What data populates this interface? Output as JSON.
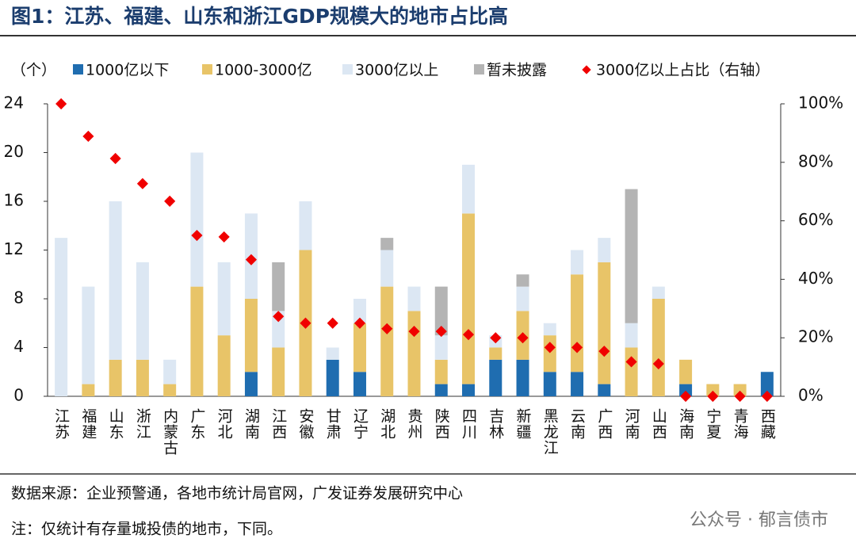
{
  "title": "图1：江苏、福建、山东和浙江GDP规模大的地市占比高",
  "source": "数据来源：企业预警通，各地市统计局官网，广发证券发展研究中心",
  "note": "注：仅统计有存量城投债的地市，下同。",
  "watermark": "公众号 · 郁言债市",
  "chart_data": {
    "type": "bar",
    "y_label": "（个）",
    "categories": [
      "江苏",
      "福建",
      "山东",
      "浙江",
      "内蒙古",
      "广东",
      "河北",
      "湖南",
      "江西",
      "安徽",
      "甘肃",
      "辽宁",
      "湖北",
      "贵州",
      "陕西",
      "四川",
      "吉林",
      "新疆",
      "黑龙江",
      "云南",
      "广西",
      "河南",
      "山西",
      "海南",
      "宁夏",
      "青海",
      "西藏"
    ],
    "series": [
      {
        "name": "1000亿以下",
        "color": "#1f6db0",
        "values": [
          0,
          0,
          0,
          0,
          0,
          0,
          0,
          2,
          0,
          0,
          3,
          2,
          0,
          0,
          1,
          1,
          3,
          3,
          2,
          2,
          1,
          0,
          0,
          1,
          0,
          0,
          2
        ]
      },
      {
        "name": "1000-3000亿",
        "color": "#e8c468",
        "values": [
          0,
          1,
          3,
          3,
          1,
          9,
          5,
          6,
          4,
          12,
          0,
          4,
          9,
          7,
          2,
          14,
          1,
          4,
          3,
          8,
          10,
          4,
          8,
          2,
          1,
          1,
          0
        ]
      },
      {
        "name": "3000亿以上",
        "color": "#dce7f3",
        "values": [
          13,
          8,
          13,
          8,
          2,
          11,
          6,
          7,
          3,
          4,
          1,
          2,
          3,
          2,
          2,
          4,
          1,
          2,
          1,
          2,
          2,
          2,
          1,
          0,
          0,
          0,
          0
        ]
      },
      {
        "name": "暂未披露",
        "color": "#b4b4b4",
        "values": [
          0,
          0,
          0,
          0,
          0,
          0,
          0,
          0,
          4,
          0,
          0,
          0,
          1,
          0,
          4,
          0,
          0,
          1,
          0,
          0,
          0,
          11,
          0,
          0,
          0,
          0,
          0
        ]
      },
      {
        "name": "3000亿以上占比（右轴）",
        "type": "scatter",
        "axis": "y2",
        "color": "#f00000",
        "values": [
          100,
          88.9,
          81.3,
          72.7,
          66.7,
          55,
          54.5,
          46.7,
          27.3,
          25,
          25,
          25,
          23.1,
          22.2,
          22.2,
          21.1,
          20,
          20,
          16.7,
          16.7,
          15.4,
          11.8,
          11.1,
          0,
          0,
          0,
          0
        ]
      }
    ],
    "ylim": [
      0,
      24
    ],
    "yticks": [
      0,
      4,
      8,
      12,
      16,
      20,
      24
    ],
    "y2lim": [
      0,
      100
    ],
    "y2ticks": [
      {
        "value": 0,
        "label": "0%"
      },
      {
        "value": 20,
        "label": "20%"
      },
      {
        "value": 40,
        "label": "40%"
      },
      {
        "value": 60,
        "label": "60%"
      },
      {
        "value": 80,
        "label": "80%"
      },
      {
        "value": 100,
        "label": "100%"
      }
    ],
    "grid": false
  }
}
